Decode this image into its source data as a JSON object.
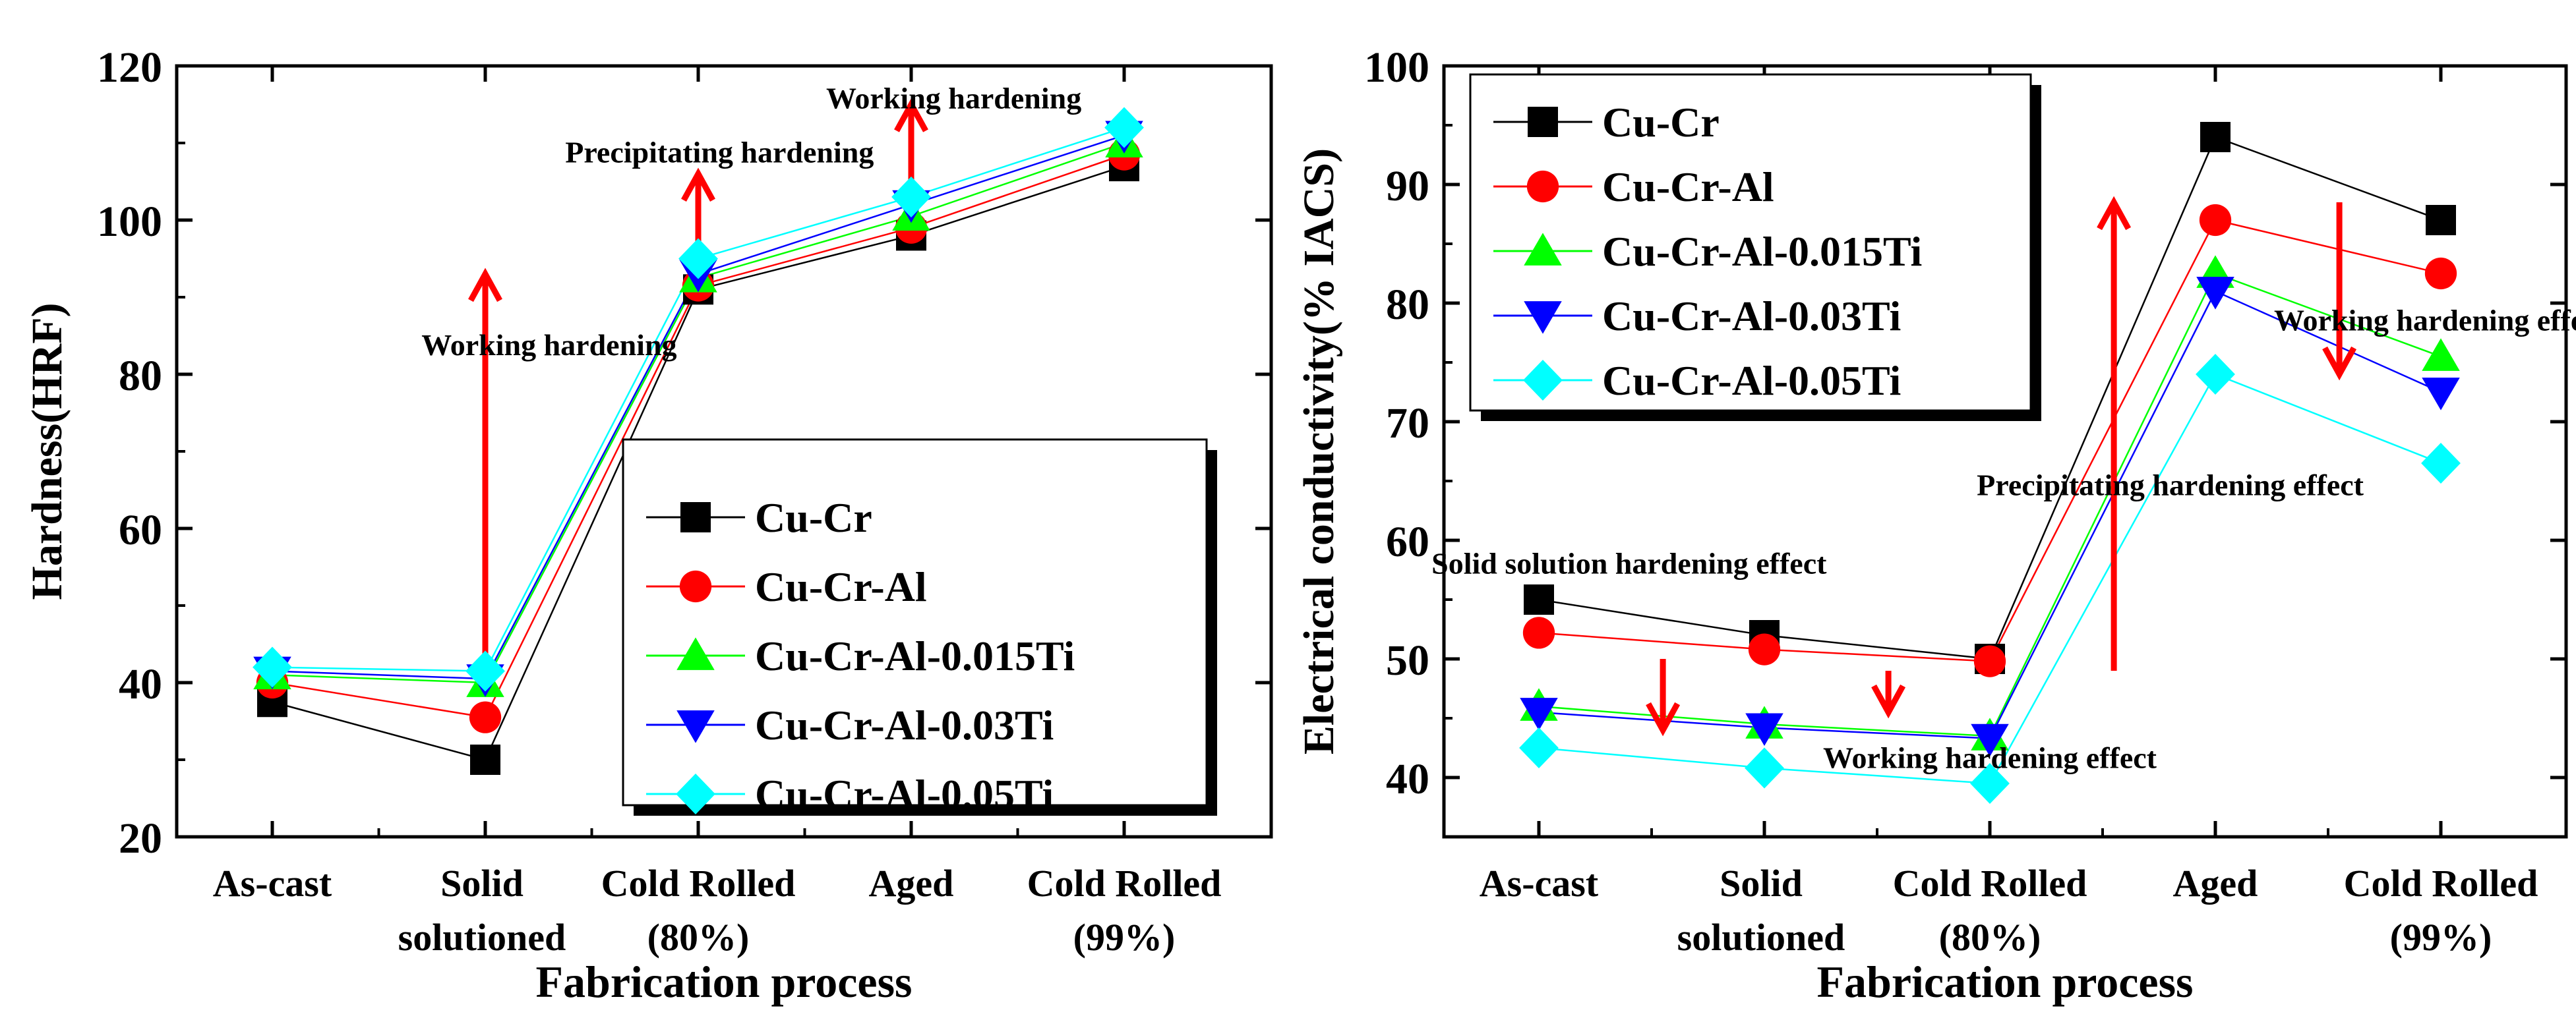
{
  "chart_data": [
    {
      "type": "line",
      "xlabel": "Fabrication process",
      "ylabel": "Hardness(HRF)",
      "ylim": [
        20,
        120
      ],
      "yticks": [
        "20",
        "40",
        "60",
        "80",
        "100",
        "120"
      ],
      "categories": [
        [
          "As-cast"
        ],
        [
          "Solid",
          "solutioned"
        ],
        [
          "Cold Rolled",
          "(80%)"
        ],
        [
          "Aged"
        ],
        [
          "Cold Rolled",
          "(99%)"
        ]
      ],
      "series": [
        {
          "name": "Cu-Cr",
          "marker": "square",
          "color": "#000000",
          "values": [
            37.5,
            30,
            91,
            98,
            107
          ]
        },
        {
          "name": "Cu-Cr-Al",
          "marker": "circle",
          "color": "#ff0000",
          "values": [
            40,
            35.5,
            91.5,
            99,
            108.5
          ]
        },
        {
          "name": "Cu-Cr-Al-0.015Ti",
          "marker": "triangle-up",
          "color": "#00ff00",
          "values": [
            41,
            40,
            92.5,
            100.5,
            110
          ]
        },
        {
          "name": "Cu-Cr-Al-0.03Ti",
          "marker": "triangle-down",
          "color": "#0000ff",
          "values": [
            41.5,
            40.5,
            93,
            102,
            111
          ]
        },
        {
          "name": "Cu-Cr-Al-0.05Ti",
          "marker": "diamond",
          "color": "#00ffff",
          "values": [
            42,
            41.5,
            95,
            103,
            112
          ]
        }
      ],
      "annotations": [
        {
          "text": "Working hardening",
          "x_index": 1.3,
          "y": 82.5
        },
        {
          "text": "Precipitating hardening",
          "x_index": 2.1,
          "y": 107.5
        },
        {
          "text": "Working hardening",
          "x_index": 3.2,
          "y": 114.5
        }
      ],
      "arrows": [
        {
          "x_index": 1.0,
          "from": 41,
          "to": 93
        },
        {
          "x_index": 2.0,
          "from": 92,
          "to": 106
        },
        {
          "x_index": 3.0,
          "from": 102,
          "to": 115
        }
      ],
      "legend_position": "lower-right"
    },
    {
      "type": "line",
      "xlabel": "Fabrication process",
      "ylabel": "Electrical conductivity(% IACS)",
      "ylim": [
        35,
        100
      ],
      "yticks": [
        "40",
        "50",
        "60",
        "70",
        "80",
        "90",
        "100"
      ],
      "categories": [
        [
          "As-cast"
        ],
        [
          "Solid",
          "solutioned"
        ],
        [
          "Cold Rolled",
          "(80%)"
        ],
        [
          "Aged"
        ],
        [
          "Cold Rolled",
          "(99%)"
        ]
      ],
      "series": [
        {
          "name": "Cu-Cr",
          "marker": "square",
          "color": "#000000",
          "values": [
            55,
            52,
            50,
            94,
            87
          ]
        },
        {
          "name": "Cu-Cr-Al",
          "marker": "circle",
          "color": "#ff0000",
          "values": [
            52.2,
            50.8,
            49.8,
            87,
            82.5
          ]
        },
        {
          "name": "Cu-Cr-Al-0.015Ti",
          "marker": "triangle-up",
          "color": "#00ff00",
          "values": [
            46,
            44.5,
            43.5,
            82.5,
            75.5
          ]
        },
        {
          "name": "Cu-Cr-Al-0.03Ti",
          "marker": "triangle-down",
          "color": "#0000ff",
          "values": [
            45.5,
            44.2,
            43.3,
            81,
            72.5
          ]
        },
        {
          "name": "Cu-Cr-Al-0.05Ti",
          "marker": "diamond",
          "color": "#00ffff",
          "values": [
            42.5,
            40.8,
            39.5,
            74,
            66.5
          ]
        }
      ],
      "annotations": [
        {
          "text": "Solid solution hardening effect",
          "x_index": 0.4,
          "y": 57.2
        },
        {
          "text": "Working hardening effect",
          "x_index": 2.0,
          "y": 40.8
        },
        {
          "text": "Precipitating hardening effect",
          "x_index": 2.8,
          "y": 63.8
        },
        {
          "text": "Working hardening effect",
          "x_index": 4.0,
          "y": 77.7
        }
      ],
      "arrows": [
        {
          "x_index": 0.55,
          "from": 50,
          "to": 44
        },
        {
          "x_index": 1.55,
          "from": 49,
          "to": 45.5
        },
        {
          "x_index": 2.55,
          "from": 49,
          "to": 88.5
        },
        {
          "x_index": 3.55,
          "from": 88.5,
          "to": 74
        }
      ],
      "legend_position": "top-left"
    }
  ]
}
